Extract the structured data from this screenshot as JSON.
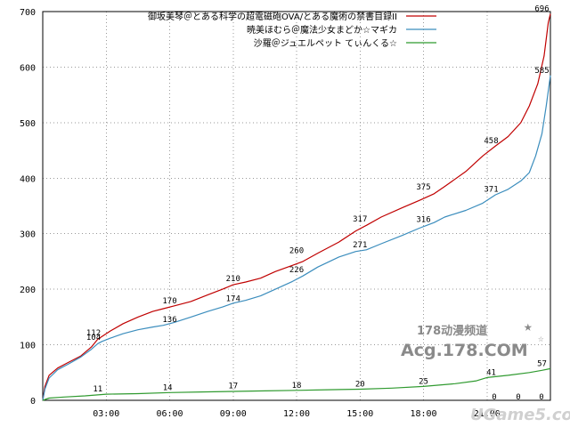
{
  "chart_data": {
    "type": "line",
    "title": "",
    "xlabel": "",
    "ylabel": "",
    "ylim": [
      0,
      700
    ],
    "yticks": [
      0,
      100,
      200,
      300,
      400,
      500,
      600,
      700
    ],
    "xlim": [
      0,
      24
    ],
    "xticks": [
      3,
      6,
      9,
      12,
      15,
      18,
      21
    ],
    "xtick_labels": [
      "03:00",
      "06:00",
      "09:00",
      "12:00",
      "15:00",
      "18:00",
      "21:00"
    ],
    "grid": true,
    "legend_position": "top-right",
    "series": [
      {
        "name": "御坂美琴＠とある科学の超電磁砲OVA/とある魔術の禁書目録II",
        "color": "#c00000",
        "points": [
          [
            0,
            0
          ],
          [
            0.1,
            25
          ],
          [
            0.3,
            45
          ],
          [
            0.7,
            58
          ],
          [
            1.2,
            68
          ],
          [
            1.8,
            80
          ],
          [
            2.3,
            96
          ],
          [
            2.6,
            110
          ],
          [
            2.8,
            115
          ],
          [
            3.2,
            125
          ],
          [
            3.8,
            138
          ],
          [
            4.5,
            150
          ],
          [
            5.2,
            160
          ],
          [
            5.7,
            165
          ],
          [
            6.2,
            170
          ],
          [
            7.0,
            178
          ],
          [
            7.8,
            190
          ],
          [
            8.5,
            200
          ],
          [
            9.0,
            208
          ],
          [
            9.6,
            213
          ],
          [
            10.3,
            220
          ],
          [
            11,
            232
          ],
          [
            11.8,
            243
          ],
          [
            12.3,
            250
          ],
          [
            13,
            265
          ],
          [
            14,
            285
          ],
          [
            14.8,
            305
          ],
          [
            15.3,
            315
          ],
          [
            16,
            330
          ],
          [
            17,
            347
          ],
          [
            17.8,
            360
          ],
          [
            18.5,
            372
          ],
          [
            19,
            385
          ],
          [
            20,
            412
          ],
          [
            20.8,
            440
          ],
          [
            21.4,
            458
          ],
          [
            22,
            475
          ],
          [
            22.6,
            500
          ],
          [
            23,
            530
          ],
          [
            23.4,
            570
          ],
          [
            23.7,
            620
          ],
          [
            23.9,
            680
          ],
          [
            24,
            696
          ]
        ],
        "labels": [
          {
            "x": 2.4,
            "y": 112,
            "text": "112"
          },
          {
            "x": 6,
            "y": 170,
            "text": "170"
          },
          {
            "x": 9,
            "y": 210,
            "text": "210"
          },
          {
            "x": 12,
            "y": 260,
            "text": "260"
          },
          {
            "x": 15,
            "y": 317,
            "text": "317"
          },
          {
            "x": 18,
            "y": 375,
            "text": "375"
          },
          {
            "x": 21.2,
            "y": 458,
            "text": "458"
          },
          {
            "x": 23.6,
            "y": 696,
            "text": "696"
          }
        ]
      },
      {
        "name": "暁美ほむら＠魔法少女まどか☆マギカ",
        "color": "#3b8dbd",
        "points": [
          [
            0,
            0
          ],
          [
            0.1,
            20
          ],
          [
            0.3,
            40
          ],
          [
            0.7,
            55
          ],
          [
            1.2,
            65
          ],
          [
            1.8,
            78
          ],
          [
            2.3,
            92
          ],
          [
            2.6,
            102
          ],
          [
            2.8,
            106
          ],
          [
            3.2,
            112
          ],
          [
            3.8,
            120
          ],
          [
            4.5,
            127
          ],
          [
            5.2,
            132
          ],
          [
            5.7,
            135
          ],
          [
            6.2,
            140
          ],
          [
            7,
            150
          ],
          [
            7.8,
            160
          ],
          [
            8.5,
            168
          ],
          [
            9,
            175
          ],
          [
            9.6,
            180
          ],
          [
            10.3,
            188
          ],
          [
            11,
            200
          ],
          [
            11.8,
            214
          ],
          [
            12.3,
            224
          ],
          [
            13,
            240
          ],
          [
            14,
            258
          ],
          [
            14.8,
            268
          ],
          [
            15.3,
            271
          ],
          [
            16,
            282
          ],
          [
            17,
            297
          ],
          [
            17.8,
            310
          ],
          [
            18.5,
            320
          ],
          [
            19,
            330
          ],
          [
            20,
            342
          ],
          [
            20.8,
            355
          ],
          [
            21.4,
            370
          ],
          [
            22,
            380
          ],
          [
            22.6,
            395
          ],
          [
            23,
            410
          ],
          [
            23.3,
            440
          ],
          [
            23.6,
            480
          ],
          [
            23.8,
            530
          ],
          [
            24,
            585
          ]
        ],
        "labels": [
          {
            "x": 2.4,
            "y": 104,
            "text": "104"
          },
          {
            "x": 6,
            "y": 136,
            "text": "136"
          },
          {
            "x": 9,
            "y": 174,
            "text": "174"
          },
          {
            "x": 12,
            "y": 226,
            "text": "226"
          },
          {
            "x": 15,
            "y": 271,
            "text": "271"
          },
          {
            "x": 18,
            "y": 316,
            "text": "316"
          },
          {
            "x": 21.2,
            "y": 371,
            "text": "371"
          },
          {
            "x": 23.6,
            "y": 585,
            "text": "585"
          }
        ]
      },
      {
        "name": "沙羅＠ジュエルペット てぃんくる☆",
        "color": "#2f9a2f",
        "points": [
          [
            0,
            0
          ],
          [
            0.3,
            4
          ],
          [
            1,
            6
          ],
          [
            2,
            8
          ],
          [
            3,
            11
          ],
          [
            4.5,
            12
          ],
          [
            6,
            14
          ],
          [
            7.5,
            15
          ],
          [
            9,
            16
          ],
          [
            10.5,
            17
          ],
          [
            12,
            18
          ],
          [
            13.5,
            19
          ],
          [
            15,
            20
          ],
          [
            16.5,
            22
          ],
          [
            18,
            25
          ],
          [
            19.5,
            30
          ],
          [
            20.5,
            35
          ],
          [
            21,
            41
          ],
          [
            22,
            45
          ],
          [
            23,
            50
          ],
          [
            23.6,
            54
          ],
          [
            24,
            57
          ]
        ],
        "labels": [
          {
            "x": 2.6,
            "y": 11,
            "text": "11"
          },
          {
            "x": 5.9,
            "y": 14,
            "text": "14"
          },
          {
            "x": 9,
            "y": 17,
            "text": "17"
          },
          {
            "x": 12,
            "y": 18,
            "text": "18"
          },
          {
            "x": 15,
            "y": 20,
            "text": "20"
          },
          {
            "x": 18,
            "y": 25,
            "text": "25"
          },
          {
            "x": 21.2,
            "y": 41,
            "text": "41"
          },
          {
            "x": 23.6,
            "y": 57,
            "text": "57"
          }
        ]
      }
    ],
    "end_zero_labels": [
      "0",
      "0",
      "0"
    ]
  },
  "watermark": {
    "site_name_cn": "178动漫频道",
    "site_url": "Acg.178.COM",
    "site_url_2": "UGame5.com"
  },
  "colors": {
    "grid": "#999999",
    "axis": "#000000"
  }
}
